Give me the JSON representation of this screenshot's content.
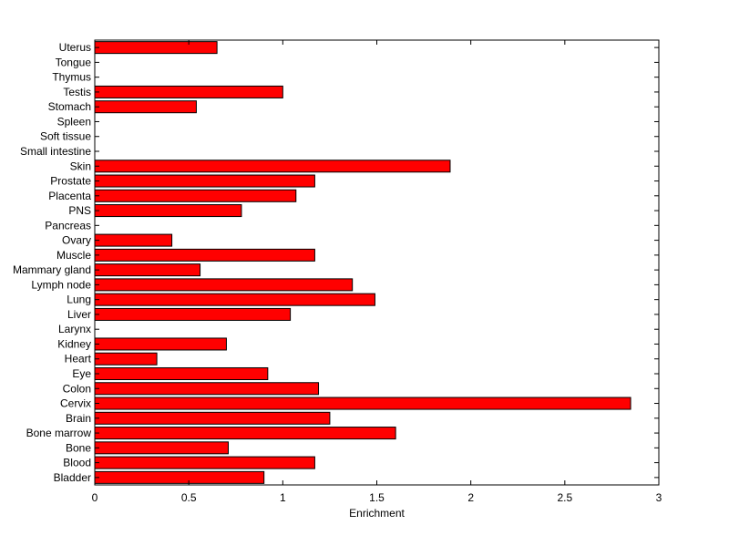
{
  "chart_data": {
    "type": "bar",
    "orientation": "horizontal",
    "title": "",
    "xlabel": "Enrichment",
    "ylabel": "",
    "xlim": [
      0,
      3
    ],
    "xticks": [
      0,
      0.5,
      1,
      1.5,
      2,
      2.5,
      3
    ],
    "xtick_labels": [
      "0",
      "0.5",
      "1",
      "1.5",
      "2",
      "2.5",
      "3"
    ],
    "grid": false,
    "bar_color": "#ff0000",
    "bar_edge_color": "#000000",
    "categories": [
      "Bladder",
      "Blood",
      "Bone",
      "Bone marrow",
      "Brain",
      "Cervix",
      "Colon",
      "Eye",
      "Heart",
      "Kidney",
      "Larynx",
      "Liver",
      "Lung",
      "Lymph node",
      "Mammary gland",
      "Muscle",
      "Ovary",
      "Pancreas",
      "PNS",
      "Placenta",
      "Prostate",
      "Skin",
      "Small intestine",
      "Soft tissue",
      "Spleen",
      "Stomach",
      "Testis",
      "Thymus",
      "Tongue",
      "Uterus"
    ],
    "values": [
      0.9,
      1.17,
      0.71,
      1.6,
      1.25,
      2.85,
      1.19,
      0.92,
      0.33,
      0.7,
      0,
      1.04,
      1.49,
      1.37,
      0.56,
      1.17,
      0.41,
      0,
      0.78,
      1.07,
      1.17,
      1.89,
      0,
      0,
      0,
      0.54,
      1.0,
      0,
      0,
      0.65
    ]
  }
}
